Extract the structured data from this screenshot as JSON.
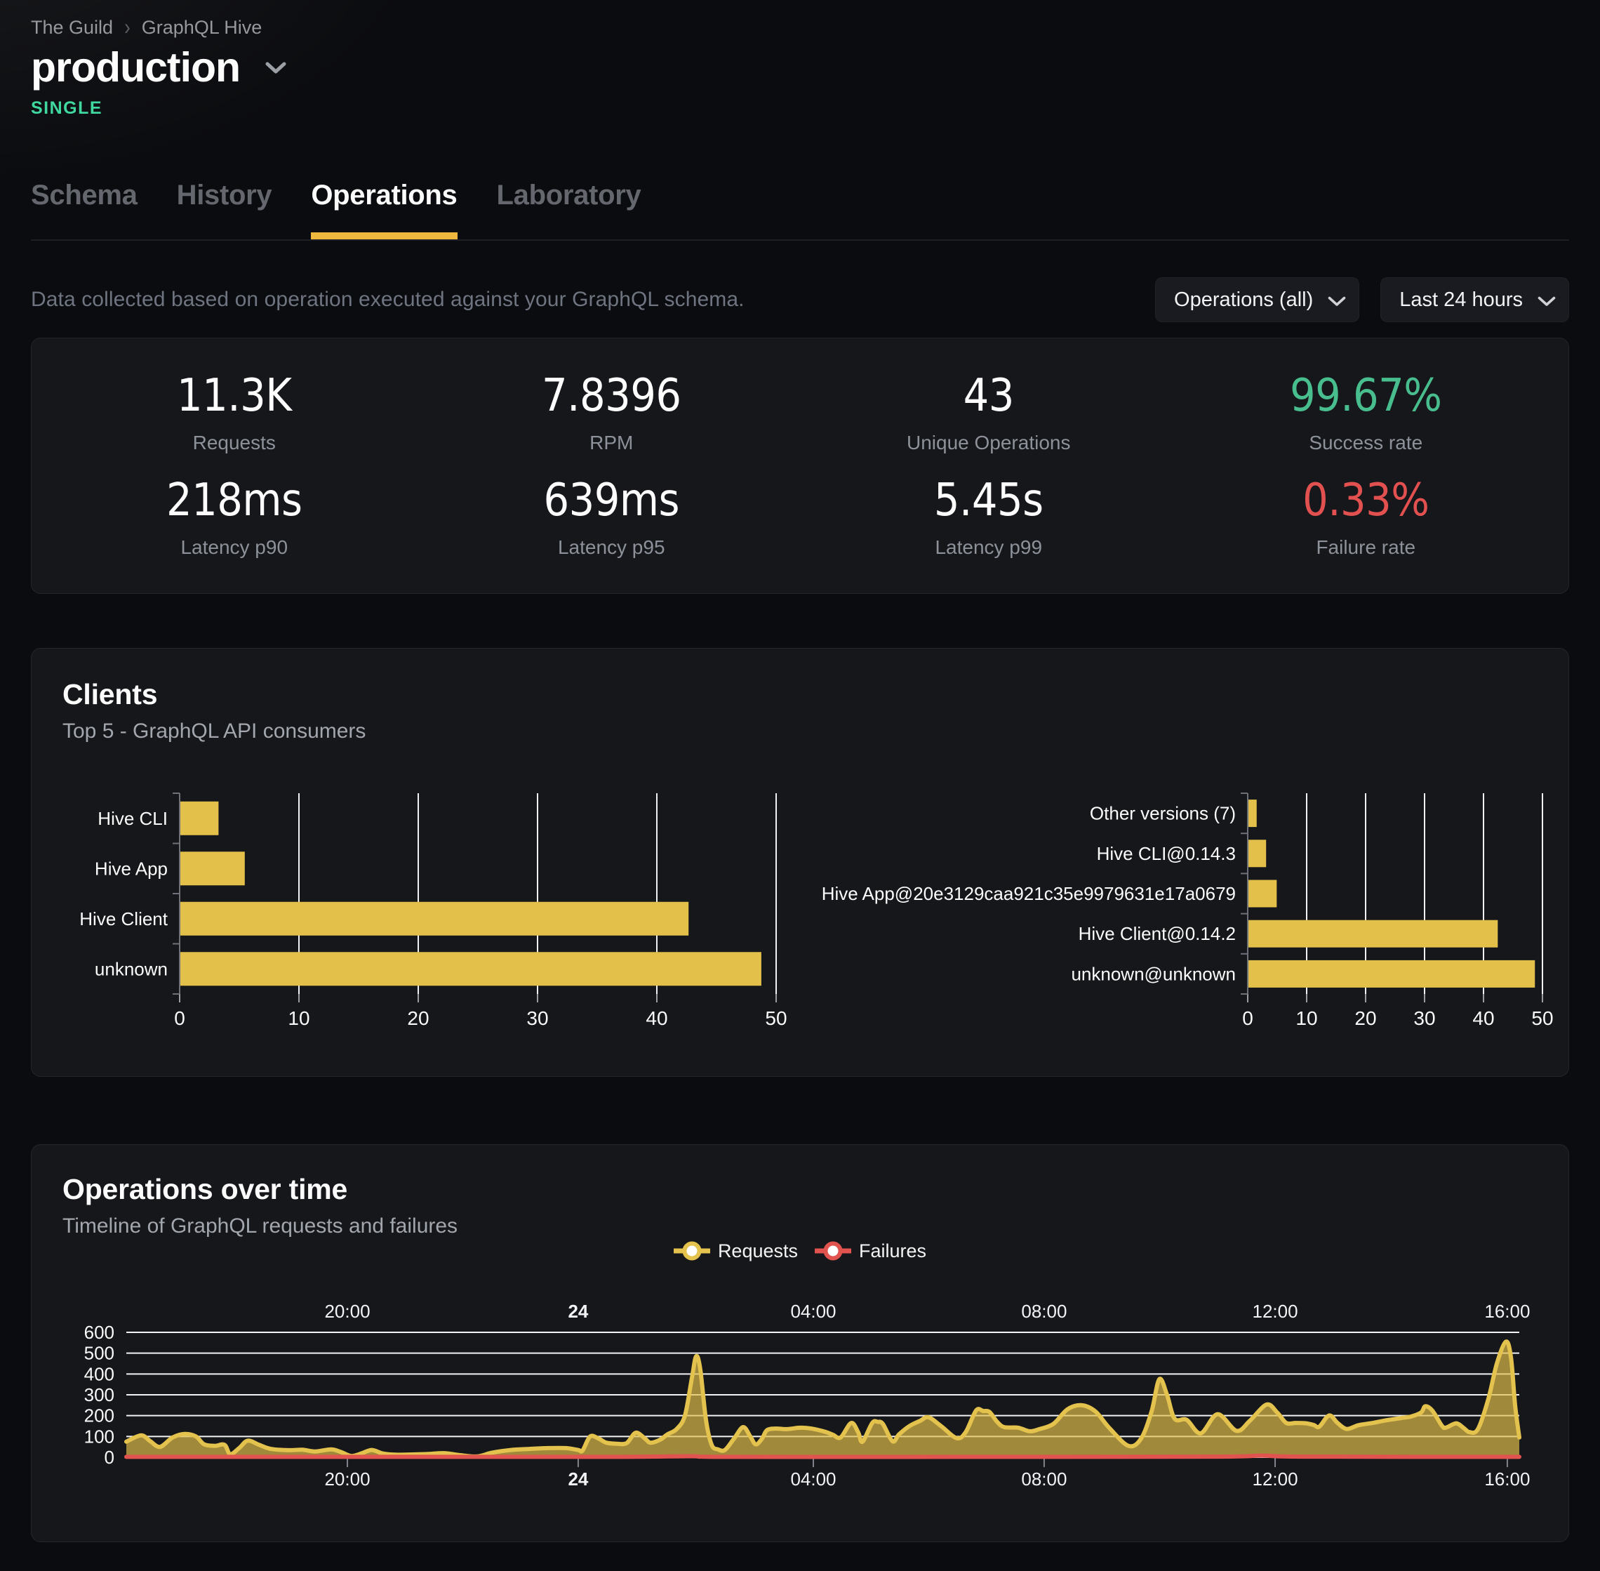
{
  "colors": {
    "accent_yellow": "#e2c04a",
    "line_yellow": "#e4c24e",
    "underline_yellow": "#eeb83f",
    "failure_red": "#e0534e",
    "success_green": "#48bd8e",
    "stat_red": "#e25050",
    "badge_green": "#3fd9a0",
    "gridline_white": "#f4f4f4",
    "axis_gray": "#6e7278"
  },
  "breadcrumb": {
    "items": [
      "The Guild",
      "GraphQL Hive"
    ],
    "separator": "›"
  },
  "project": {
    "name": "production",
    "badge": "SINGLE"
  },
  "tabs": [
    {
      "label": "Schema",
      "active": false
    },
    {
      "label": "History",
      "active": false
    },
    {
      "label": "Operations",
      "active": true
    },
    {
      "label": "Laboratory",
      "active": false
    }
  ],
  "filters": {
    "description": "Data collected based on operation executed against your GraphQL schema.",
    "operations_dropdown": "Operations (all)",
    "period_dropdown": "Last 24 hours"
  },
  "stats": [
    {
      "value": "11.3K",
      "label": "Requests",
      "tone": "white"
    },
    {
      "value": "7.8396",
      "label": "RPM",
      "tone": "white"
    },
    {
      "value": "43",
      "label": "Unique Operations",
      "tone": "white"
    },
    {
      "value": "99.67%",
      "label": "Success rate",
      "tone": "green"
    },
    {
      "value": "218ms",
      "label": "Latency p90",
      "tone": "white"
    },
    {
      "value": "639ms",
      "label": "Latency p95",
      "tone": "white"
    },
    {
      "value": "5.45s",
      "label": "Latency p99",
      "tone": "white"
    },
    {
      "value": "0.33%",
      "label": "Failure rate",
      "tone": "red"
    }
  ],
  "clients": {
    "title": "Clients",
    "subtitle": "Top 5 - GraphQL API consumers"
  },
  "timeline": {
    "title": "Operations over time",
    "subtitle": "Timeline of GraphQL requests and failures",
    "legend": [
      {
        "name": "Requests",
        "color": "#e4c24e"
      },
      {
        "name": "Failures",
        "color": "#e0534e"
      }
    ]
  },
  "chart_data": [
    {
      "id": "clients-top5",
      "type": "bar",
      "orientation": "horizontal",
      "title": "Clients",
      "categories": [
        "Hive CLI",
        "Hive App",
        "Hive Client",
        "unknown"
      ],
      "values": [
        3.2,
        5.4,
        42.6,
        48.7
      ],
      "xlim": [
        0,
        50
      ],
      "xticks": [
        0,
        10,
        20,
        30,
        40,
        50
      ],
      "bar_color": "#e2c04a",
      "grid": true,
      "legend_position": "none"
    },
    {
      "id": "client-versions-top5",
      "type": "bar",
      "orientation": "horizontal",
      "title": "Client versions",
      "categories": [
        "Other versions (7)",
        "Hive CLI@0.14.3",
        "Hive App@20e3129caa921c35e9979631e17a0679",
        "Hive Client@0.14.2",
        "unknown@unknown"
      ],
      "values": [
        1.4,
        3.0,
        4.8,
        42.3,
        48.6
      ],
      "xlim": [
        0,
        50
      ],
      "xticks": [
        0,
        10,
        20,
        30,
        40,
        50
      ],
      "bar_color": "#e2c04a",
      "grid": true,
      "legend_position": "none"
    },
    {
      "id": "operations-over-time",
      "type": "area",
      "title": "Operations over time",
      "xlabel": "",
      "ylabel": "",
      "ylim": [
        0,
        600
      ],
      "yticks": [
        0,
        100,
        200,
        300,
        400,
        500,
        600
      ],
      "x_axis_labels": [
        {
          "label": "20:00",
          "pos": 0.1587,
          "bold": false
        },
        {
          "label": "24",
          "pos": 0.3244,
          "bold": true
        },
        {
          "label": "04:00",
          "pos": 0.4932,
          "bold": false
        },
        {
          "label": "08:00",
          "pos": 0.6589,
          "bold": false
        },
        {
          "label": "12:00",
          "pos": 0.8247,
          "bold": false
        },
        {
          "label": "16:00",
          "pos": 0.9914,
          "bold": false
        }
      ],
      "grid": true,
      "legend_position": "top-center",
      "series": [
        {
          "name": "Requests",
          "color": "#e4c24e",
          "fill": "#e2c04a",
          "fill_opacity": 0.68,
          "points": [
            [
              0.0,
              75
            ],
            [
              0.0106,
              105
            ],
            [
              0.0171,
              78
            ],
            [
              0.0242,
              50
            ],
            [
              0.0332,
              95
            ],
            [
              0.0418,
              112
            ],
            [
              0.0499,
              100
            ],
            [
              0.0559,
              62
            ],
            [
              0.0635,
              55
            ],
            [
              0.0705,
              60
            ],
            [
              0.0746,
              15
            ],
            [
              0.0811,
              45
            ],
            [
              0.0872,
              80
            ],
            [
              0.0952,
              60
            ],
            [
              0.1038,
              40
            ],
            [
              0.1164,
              34
            ],
            [
              0.1264,
              36
            ],
            [
              0.1355,
              28
            ],
            [
              0.1471,
              38
            ],
            [
              0.1542,
              25
            ],
            [
              0.1617,
              6
            ],
            [
              0.1693,
              20
            ],
            [
              0.1763,
              35
            ],
            [
              0.1844,
              18
            ],
            [
              0.1945,
              12
            ],
            [
              0.2086,
              14
            ],
            [
              0.2171,
              16
            ],
            [
              0.2282,
              20
            ],
            [
              0.2398,
              10
            ],
            [
              0.2519,
              4
            ],
            [
              0.2625,
              22
            ],
            [
              0.2761,
              35
            ],
            [
              0.2892,
              40
            ],
            [
              0.3028,
              44
            ],
            [
              0.3154,
              44
            ],
            [
              0.3244,
              35
            ],
            [
              0.3275,
              32
            ],
            [
              0.333,
              100
            ],
            [
              0.339,
              90
            ],
            [
              0.3446,
              70
            ],
            [
              0.3521,
              65
            ],
            [
              0.3592,
              68
            ],
            [
              0.3657,
              118
            ],
            [
              0.3723,
              90
            ],
            [
              0.3763,
              70
            ],
            [
              0.3834,
              85
            ],
            [
              0.3884,
              110
            ],
            [
              0.395,
              135
            ],
            [
              0.401,
              200
            ],
            [
              0.406,
              380
            ],
            [
              0.4091,
              485
            ],
            [
              0.4121,
              420
            ],
            [
              0.4161,
              180
            ],
            [
              0.4202,
              60
            ],
            [
              0.4247,
              38
            ],
            [
              0.4297,
              35
            ],
            [
              0.4363,
              90
            ],
            [
              0.4428,
              145
            ],
            [
              0.4479,
              100
            ],
            [
              0.4519,
              62
            ],
            [
              0.4564,
              90
            ],
            [
              0.4599,
              130
            ],
            [
              0.4665,
              138
            ],
            [
              0.4741,
              135
            ],
            [
              0.4836,
              142
            ],
            [
              0.4917,
              138
            ],
            [
              0.5018,
              122
            ],
            [
              0.5073,
              108
            ],
            [
              0.5128,
              95
            ],
            [
              0.5204,
              165
            ],
            [
              0.5254,
              120
            ],
            [
              0.5285,
              75
            ],
            [
              0.5355,
              165
            ],
            [
              0.5395,
              170
            ],
            [
              0.5431,
              160
            ],
            [
              0.5501,
              77
            ],
            [
              0.5547,
              110
            ],
            [
              0.5622,
              150
            ],
            [
              0.5698,
              175
            ],
            [
              0.5758,
              192
            ],
            [
              0.5849,
              150
            ],
            [
              0.596,
              92
            ],
            [
              0.6025,
              120
            ],
            [
              0.6101,
              225
            ],
            [
              0.6151,
              222
            ],
            [
              0.6196,
              218
            ],
            [
              0.6252,
              170
            ],
            [
              0.6302,
              145
            ],
            [
              0.6403,
              142
            ],
            [
              0.6484,
              125
            ],
            [
              0.6554,
              135
            ],
            [
              0.6655,
              160
            ],
            [
              0.6756,
              230
            ],
            [
              0.6856,
              250
            ],
            [
              0.6957,
              220
            ],
            [
              0.7058,
              140
            ],
            [
              0.7194,
              55
            ],
            [
              0.7285,
              90
            ],
            [
              0.736,
              220
            ],
            [
              0.7416,
              375
            ],
            [
              0.7471,
              300
            ],
            [
              0.7526,
              185
            ],
            [
              0.7612,
              180
            ],
            [
              0.7713,
              115
            ],
            [
              0.7834,
              207
            ],
            [
              0.797,
              127
            ],
            [
              0.8065,
              175
            ],
            [
              0.8186,
              253
            ],
            [
              0.8262,
              215
            ],
            [
              0.8327,
              165
            ],
            [
              0.8393,
              165
            ],
            [
              0.8469,
              163
            ],
            [
              0.8524,
              155
            ],
            [
              0.8564,
              147
            ],
            [
              0.8635,
              201
            ],
            [
              0.8695,
              165
            ],
            [
              0.8761,
              136
            ],
            [
              0.8846,
              154
            ],
            [
              0.8947,
              165
            ],
            [
              0.9048,
              178
            ],
            [
              0.9149,
              188
            ],
            [
              0.9224,
              196
            ],
            [
              0.9295,
              215
            ],
            [
              0.9325,
              245
            ],
            [
              0.9375,
              225
            ],
            [
              0.9446,
              150
            ],
            [
              0.9476,
              143
            ],
            [
              0.9547,
              163
            ],
            [
              0.9602,
              140
            ],
            [
              0.9642,
              121
            ],
            [
              0.9703,
              135
            ],
            [
              0.9778,
              280
            ],
            [
              0.9839,
              450
            ],
            [
              0.9904,
              555
            ],
            [
              0.994,
              480
            ],
            [
              0.997,
              250
            ],
            [
              1.0,
              95
            ]
          ]
        },
        {
          "name": "Failures",
          "color": "#e0534e",
          "points": [
            [
              0.0,
              2
            ],
            [
              0.2,
              2
            ],
            [
              0.35,
              2
            ],
            [
              0.405,
              5
            ],
            [
              0.43,
              2
            ],
            [
              0.6,
              2
            ],
            [
              0.78,
              3
            ],
            [
              0.815,
              8
            ],
            [
              0.845,
              3
            ],
            [
              1.0,
              2
            ]
          ]
        }
      ]
    }
  ]
}
